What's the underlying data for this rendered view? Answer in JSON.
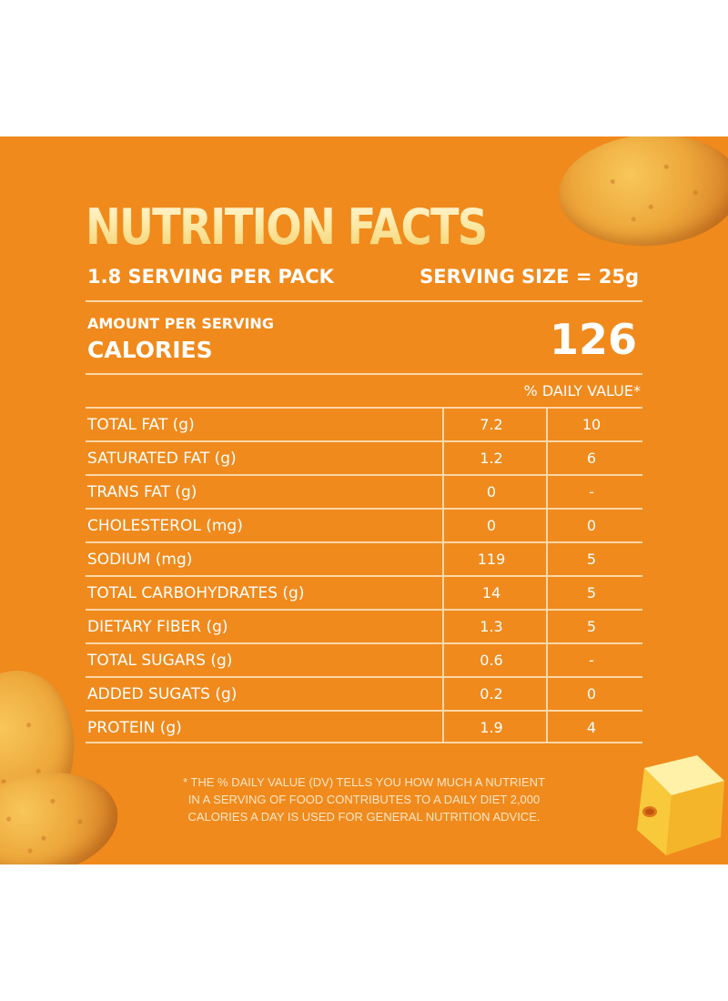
{
  "title": "NUTRITION FACTS",
  "serving": {
    "per_pack": "1.8 SERVING PER PACK",
    "size": "SERVING SIZE = 25g"
  },
  "amount_per_serving": "AMOUNT PER SERVING",
  "calories": {
    "label": "CALORIES",
    "value": "126"
  },
  "daily_value_header": "% DAILY VALUE*",
  "nutrients": [
    {
      "name": "TOTAL FAT (g)",
      "amount": "7.2",
      "dv": "10"
    },
    {
      "name": "SATURATED FAT (g)",
      "amount": "1.2",
      "dv": "6"
    },
    {
      "name": "TRANS FAT (g)",
      "amount": "0",
      "dv": "-"
    },
    {
      "name": "CHOLESTEROL (mg)",
      "amount": "0",
      "dv": "0"
    },
    {
      "name": "SODIUM (mg)",
      "amount": "119",
      "dv": "5"
    },
    {
      "name": "TOTAL CARBOHYDRATES (g)",
      "amount": "14",
      "dv": "5"
    },
    {
      "name": "DIETARY FIBER (g)",
      "amount": "1.3",
      "dv": "5"
    },
    {
      "name": "TOTAL SUGARS (g)",
      "amount": "0.6",
      "dv": "-"
    },
    {
      "name": "ADDED SUGATS (g)",
      "amount": "0.2",
      "dv": "0"
    },
    {
      "name": "PROTEIN (g)",
      "amount": "1.9",
      "dv": "4"
    }
  ],
  "footnote": {
    "line1": "* THE % DAILY VALUE (DV) TELLS YOU HOW MUCH A NUTRIENT",
    "line2": "IN A SERVING OF FOOD CONTRIBUTES TO A DAILY DIET 2,000",
    "line3": "CALORIES A DAY IS USED FOR GENERAL NUTRITION ADVICE."
  },
  "colors": {
    "background": "#f08a1c",
    "text": "#ffffff",
    "title_gold": "#fde9a6",
    "rule": "#fbd7a8"
  },
  "decorations": [
    "potato-chip-icon",
    "cheese-cube-icon"
  ]
}
